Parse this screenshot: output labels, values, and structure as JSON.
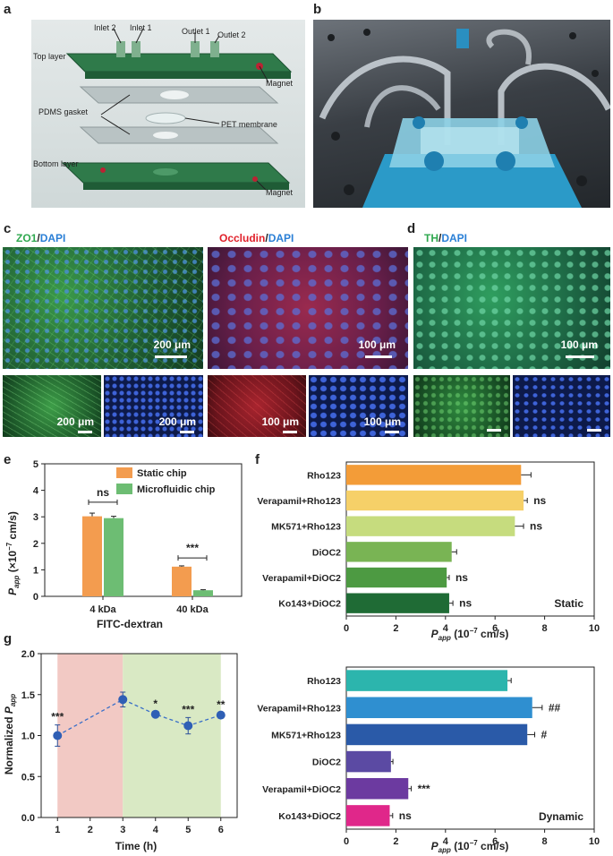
{
  "panels": {
    "a": "a",
    "b": "b",
    "c": "c",
    "d": "d",
    "e": "e",
    "f": "f",
    "g": "g"
  },
  "panel_a": {
    "labels": {
      "inlet2": "Inlet 2",
      "inlet1": "Inlet 1",
      "outlet1": "Outlet 1",
      "outlet2": "Outlet 2",
      "top_layer": "Top layer",
      "magnet_top": "Magnet",
      "pdms_gasket": "PDMS gasket",
      "pet_membrane": "PET membrane",
      "bottom_layer": "Bottom layer",
      "magnet_bottom": "Magnet"
    }
  },
  "panel_c": {
    "zo1": "ZO1",
    "dapi1": "DAPI",
    "occludin": "Occludin",
    "dapi2": "DAPI",
    "scale_200": "200 μm",
    "scale_100": "100 μm"
  },
  "panel_d": {
    "th": "TH",
    "dapi": "DAPI",
    "scale_100": "100 μm"
  },
  "slash": "/",
  "colors": {
    "zo1_green": "#2fa84f",
    "dapi_blue": "#2a7fd6",
    "occludin_red": "#e0202a",
    "static_orange": "#f39c4f",
    "micro_green": "#6dbd73"
  },
  "chart_data": [
    {
      "id": "e",
      "type": "bar",
      "categories": [
        "4 kDa",
        "40 kDa"
      ],
      "series": [
        {
          "name": "Static chip",
          "values": [
            3.02,
            1.12
          ],
          "errors": [
            0.12,
            0.03
          ],
          "color": "#f39c4f"
        },
        {
          "name": "Microfluidic chip",
          "values": [
            2.95,
            0.23
          ],
          "errors": [
            0.07,
            0.02
          ],
          "color": "#6dbd73"
        }
      ],
      "xlabel": "FITC-dextran",
      "ylabel": "P_app (×10⁻⁷ cm/s)",
      "ylabel_main": "P",
      "ylabel_sub": "app",
      "ylabel_rest": " (×10",
      "ylabel_exp": "−7",
      "ylabel_tail": " cm/s)",
      "ylim": [
        0,
        5
      ],
      "yticks": [
        "0",
        "1",
        "2",
        "3",
        "4",
        "5"
      ],
      "annotations": [
        "ns",
        "***"
      ],
      "legend": "top-right"
    },
    {
      "id": "f",
      "type": "bar",
      "orientation": "horizontal",
      "categories": [
        "Rho123",
        "Verapamil+Rho123",
        "MK571+Rho123",
        "DiOC2",
        "Verapamil+DiOC2",
        "Ko143+DiOC2"
      ],
      "values": [
        7.05,
        7.15,
        6.8,
        4.25,
        4.05,
        4.15
      ],
      "errors": [
        0.4,
        0.15,
        0.35,
        0.2,
        0.1,
        0.15
      ],
      "colors": [
        "#f39c38",
        "#f6d068",
        "#c6dc7e",
        "#79b454",
        "#4d9a42",
        "#1f6b35"
      ],
      "significance": [
        "",
        "ns",
        "ns",
        "",
        "ns",
        "ns"
      ],
      "condition": "Static",
      "xlabel_main": "P",
      "xlabel_sub": "app",
      "xlabel_rest": " (10",
      "xlabel_exp": "−7",
      "xlabel_tail": " cm/s)",
      "xlim": [
        0,
        10
      ],
      "xticks": [
        "0",
        "2",
        "4",
        "6",
        "8",
        "10"
      ]
    },
    {
      "id": "f2",
      "type": "bar",
      "orientation": "horizontal",
      "categories": [
        "Rho123",
        "Verapamil+Rho123",
        "MK571+Rho123",
        "DiOC2",
        "Verapamil+DiOC2",
        "Ko143+DiOC2"
      ],
      "values": [
        6.5,
        7.5,
        7.3,
        1.8,
        2.5,
        1.75
      ],
      "errors": [
        0.15,
        0.4,
        0.3,
        0.08,
        0.12,
        0.12
      ],
      "colors": [
        "#2cb5ad",
        "#2f8fd0",
        "#2a5aa8",
        "#5b4aa3",
        "#6c3aa0",
        "#e0278a"
      ],
      "significance": [
        "",
        "##",
        "#",
        "",
        "***",
        "ns"
      ],
      "condition": "Dynamic",
      "xlabel_main": "P",
      "xlabel_sub": "app",
      "xlabel_rest": " (10",
      "xlabel_exp": "−7",
      "xlabel_tail": " cm/s)",
      "xlim": [
        0,
        10
      ],
      "xticks": [
        "0",
        "2",
        "4",
        "6",
        "8",
        "10"
      ]
    },
    {
      "id": "g",
      "type": "line",
      "x": [
        1,
        3,
        4,
        5,
        6
      ],
      "y": [
        1.0,
        1.44,
        1.26,
        1.12,
        1.25
      ],
      "errors": [
        0.13,
        0.09,
        0.03,
        0.1,
        0.03
      ],
      "significance": [
        "***",
        "",
        "*",
        "***",
        "**"
      ],
      "xlabel": "Time (h)",
      "ylabel_main": "Normalized ",
      "ylabel_p": "P",
      "ylabel_sub": "app",
      "xlim": [
        0.5,
        6.5
      ],
      "ylim": [
        0,
        2.0
      ],
      "xticks": [
        "1",
        "2",
        "3",
        "4",
        "5",
        "6"
      ],
      "yticks": [
        "0.0",
        "0.5",
        "1.0",
        "1.5",
        "2.0"
      ],
      "shaded_regions": [
        {
          "from": 1,
          "to": 3,
          "color": "#f2c9c4"
        },
        {
          "from": 3,
          "to": 6,
          "color": "#d9e9c4"
        }
      ]
    }
  ]
}
